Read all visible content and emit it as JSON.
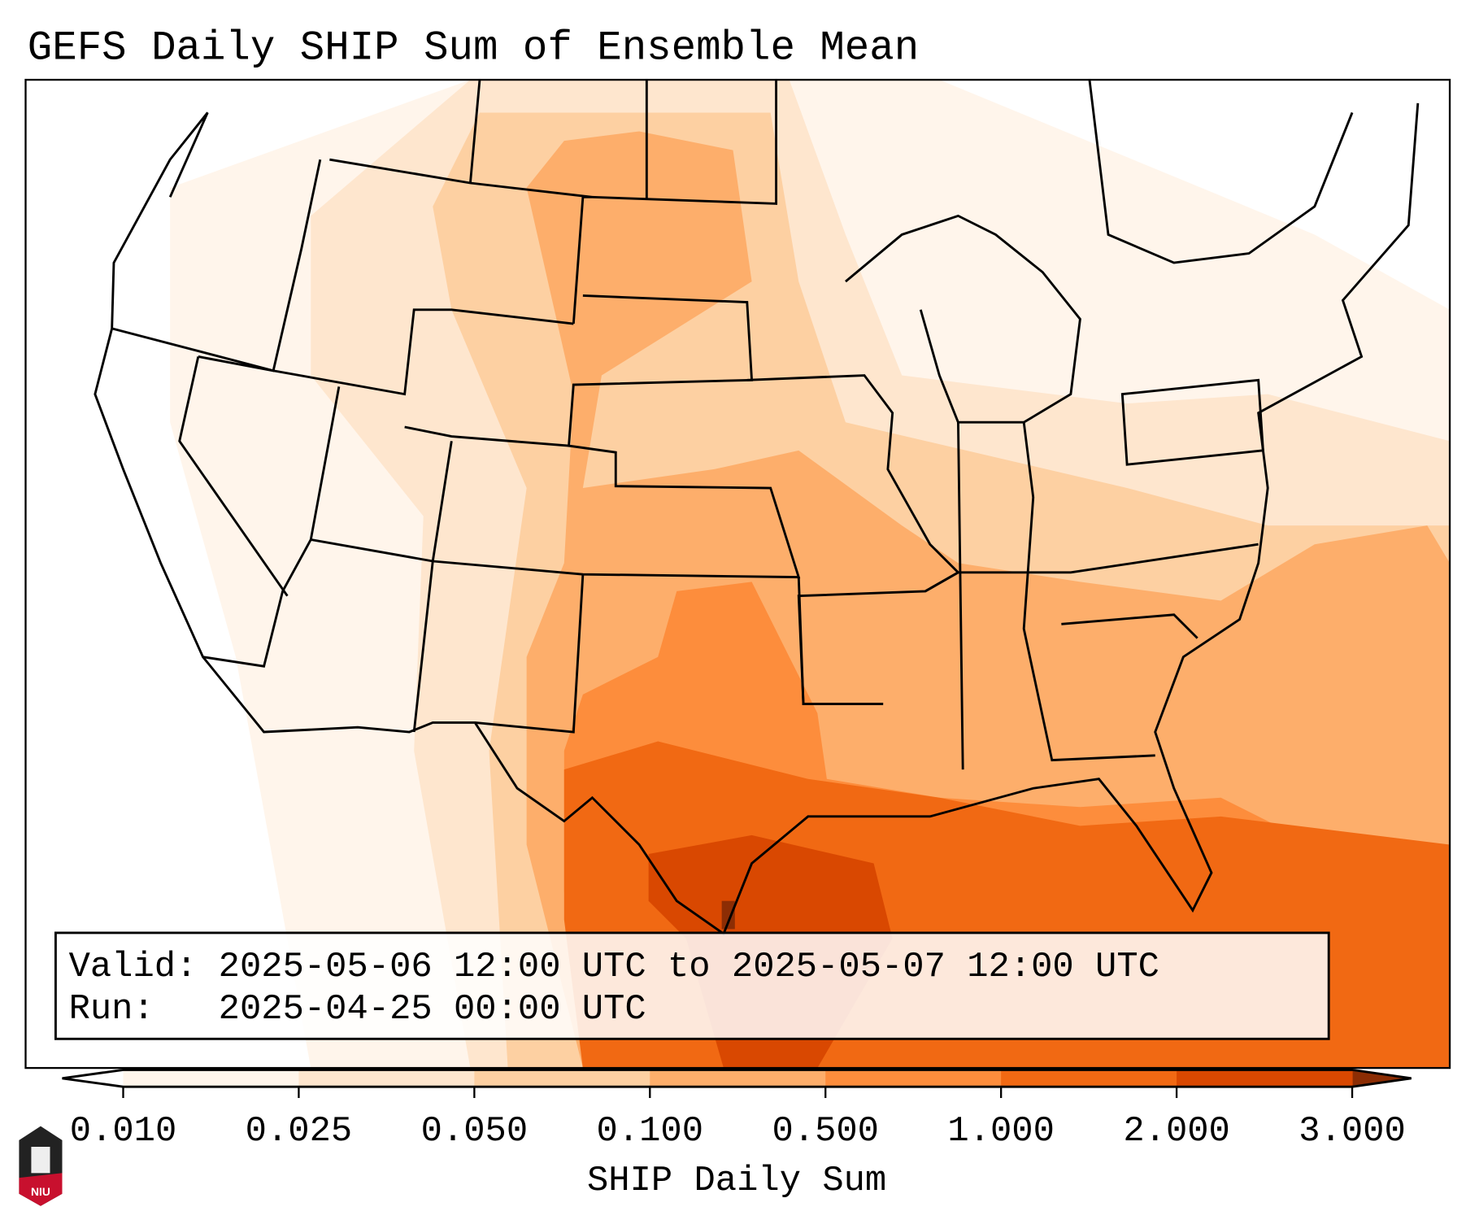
{
  "title": "GEFS Daily SHIP Sum of Ensemble Mean",
  "info_box": {
    "valid_line": "Valid: 2025-05-06 12:00 UTC to 2025-05-07 12:00 UTC",
    "run_line": "Run:   2025-04-25 00:00 UTC"
  },
  "colorbar": {
    "label": "SHIP Daily Sum",
    "ticks": [
      "0.010",
      "0.025",
      "0.050",
      "0.100",
      "0.500",
      "1.000",
      "2.000",
      "3.000"
    ],
    "colors": [
      "#fff5eb",
      "#fee6ce",
      "#fdd0a2",
      "#fdae6b",
      "#fd8d3c",
      "#f16913",
      "#d94801"
    ],
    "under_color": "#ffffff",
    "over_color": "#8c2d04"
  },
  "logo": {
    "text": "NIU"
  }
}
